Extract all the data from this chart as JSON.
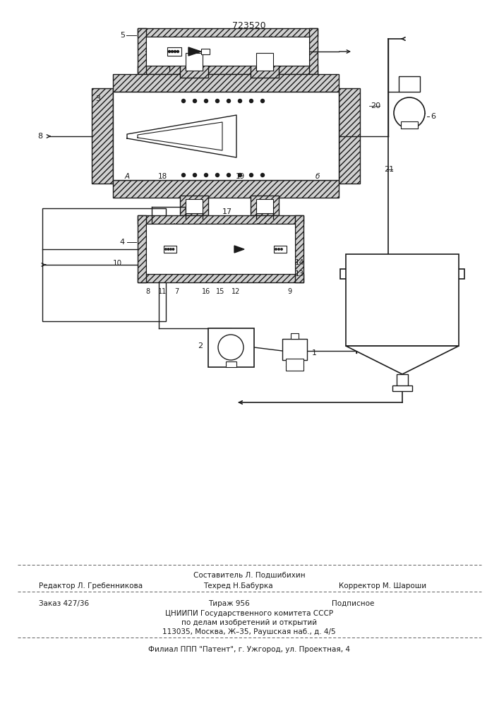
{
  "patent_number": "723520",
  "background_color": "#ffffff",
  "line_color": "#1a1a1a",
  "title_fontsize": 9,
  "body_fontsize": 7.5,
  "footer_sestavitel": "Составитель Л. Подшибихин",
  "footer_redaktor": "Редактор Л. Гребенникова",
  "footer_tekhred": "Техред Н.Бабурка",
  "footer_korrektor": "Корректор М. Шароши",
  "footer_zakaz": "Заказ 427/36",
  "footer_tirazh": "Тираж 956",
  "footer_podpisnoe": "Подписное",
  "footer_line3": "ЦНИИПИ Государственного комитета СССР",
  "footer_line4": "по делам изобретений и открытий",
  "footer_line5": "113035, Москва, Ж–35, Раушская наб., д. 4/5",
  "footer_line6": "Филиал ППП \"Патент\", г. Ужгород, ул. Проектная, 4"
}
